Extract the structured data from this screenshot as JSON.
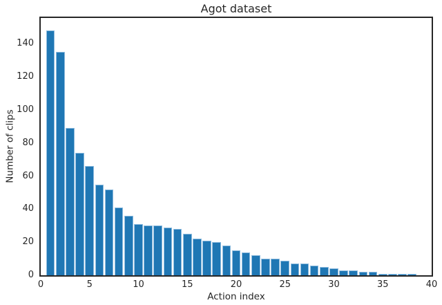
{
  "colors": {
    "bar_fill": "#1f77b4",
    "bar_edge": "#8fbcdf",
    "spine": "#262626",
    "text": "#262626",
    "background": "#ffffff"
  },
  "chart_data": {
    "type": "bar",
    "title": "Agot dataset",
    "xlabel": "Action index",
    "ylabel": "Number of clips",
    "x": [
      1,
      2,
      3,
      4,
      5,
      6,
      7,
      8,
      9,
      10,
      11,
      12,
      13,
      14,
      15,
      16,
      17,
      18,
      19,
      20,
      21,
      22,
      23,
      24,
      25,
      26,
      27,
      28,
      29,
      30,
      31,
      32,
      33,
      34,
      35,
      36,
      37,
      38
    ],
    "values": [
      148,
      135,
      89,
      74,
      66,
      55,
      52,
      41,
      36,
      31,
      30,
      30,
      29,
      28,
      25,
      22,
      21,
      20,
      18,
      15,
      14,
      12,
      10,
      10,
      9,
      7,
      7,
      6,
      5,
      4,
      3,
      3,
      2,
      2,
      1,
      1,
      1,
      1
    ],
    "xlim": [
      0,
      40
    ],
    "ylim": [
      0,
      155.6
    ],
    "xticks": [
      0,
      5,
      10,
      15,
      20,
      25,
      30,
      35,
      40
    ],
    "yticks": [
      0,
      20,
      40,
      60,
      80,
      100,
      120,
      140
    ],
    "bar_width_units": 0.9,
    "grid": false,
    "legend": null
  }
}
